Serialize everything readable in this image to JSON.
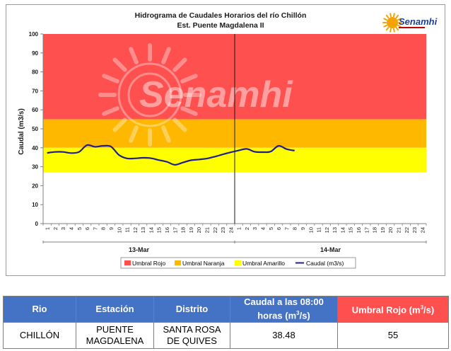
{
  "logo": {
    "text": "Senamhi"
  },
  "watermark": {
    "text": "Senamhi"
  },
  "chart_data": {
    "type": "line",
    "title": "Hidrograma de Caudales Horarios del río Chillón",
    "subtitle": "Est. Puente Magdalena II",
    "ylabel": "Caudal  (m3/s)",
    "xlabel": "",
    "ylim": [
      0,
      100
    ],
    "yticks": [
      0,
      10,
      20,
      30,
      40,
      50,
      60,
      70,
      80,
      90,
      100
    ],
    "x_tick_labels": [
      "1",
      "2",
      "3",
      "4",
      "5",
      "6",
      "7",
      "8",
      "9",
      "10",
      "11",
      "12",
      "13",
      "14",
      "15",
      "16",
      "17",
      "18",
      "19",
      "20",
      "21",
      "22",
      "23",
      "24",
      "1",
      "2",
      "3",
      "4",
      "5",
      "6",
      "7",
      "8",
      "9",
      "10",
      "11",
      "12",
      "13",
      "14",
      "15",
      "16",
      "17",
      "18",
      "19",
      "20",
      "21",
      "22",
      "23",
      "24"
    ],
    "day_labels": [
      "13-Mar",
      "14-Mar"
    ],
    "grid": false,
    "legend_position": "bottom",
    "bands": [
      {
        "name": "Umbral Rojo",
        "from": 55,
        "to": 100,
        "color": "#ff5050"
      },
      {
        "name": "Umbral Naranja",
        "from": 40,
        "to": 55,
        "color": "#ffb800"
      },
      {
        "name": "Umbral Amarillo",
        "from": 27,
        "to": 40,
        "color": "#ffff00"
      }
    ],
    "series": [
      {
        "name": "Caudal (m3/s)",
        "color": "#1f1f8c",
        "x": [
          1,
          2,
          3,
          4,
          5,
          6,
          7,
          8,
          9,
          10,
          11,
          12,
          13,
          14,
          15,
          16,
          17,
          18,
          19,
          20,
          21,
          22,
          23,
          24,
          25,
          26,
          27,
          28,
          29,
          30,
          31,
          32
        ],
        "values": [
          37.3,
          37.8,
          37.8,
          37.2,
          37.8,
          41.4,
          40.5,
          41.0,
          40.6,
          36.2,
          34.4,
          34.4,
          34.7,
          34.5,
          33.5,
          32.6,
          31.0,
          32.2,
          33.4,
          33.8,
          34.3,
          35.3,
          36.5,
          37.6,
          38.6,
          39.4,
          37.9,
          37.7,
          38.0,
          41.0,
          39.3,
          38.48
        ]
      }
    ]
  },
  "table": {
    "headers": {
      "rio": "Rio",
      "estacion": "Estación",
      "distrito": "Distrito",
      "caudal": "Caudal a las 08:00 horas (m",
      "caudal_sup": "3",
      "caudal_tail": "/s)",
      "umbral": "Umbral Rojo (m",
      "umbral_sup": "3",
      "umbral_tail": "/s)"
    },
    "row": {
      "rio": "CHILLÓN",
      "estacion": "PUENTE MAGDALENA",
      "distrito": "SANTA ROSA DE QUIVES",
      "caudal": "38.48",
      "umbral": "55"
    }
  }
}
